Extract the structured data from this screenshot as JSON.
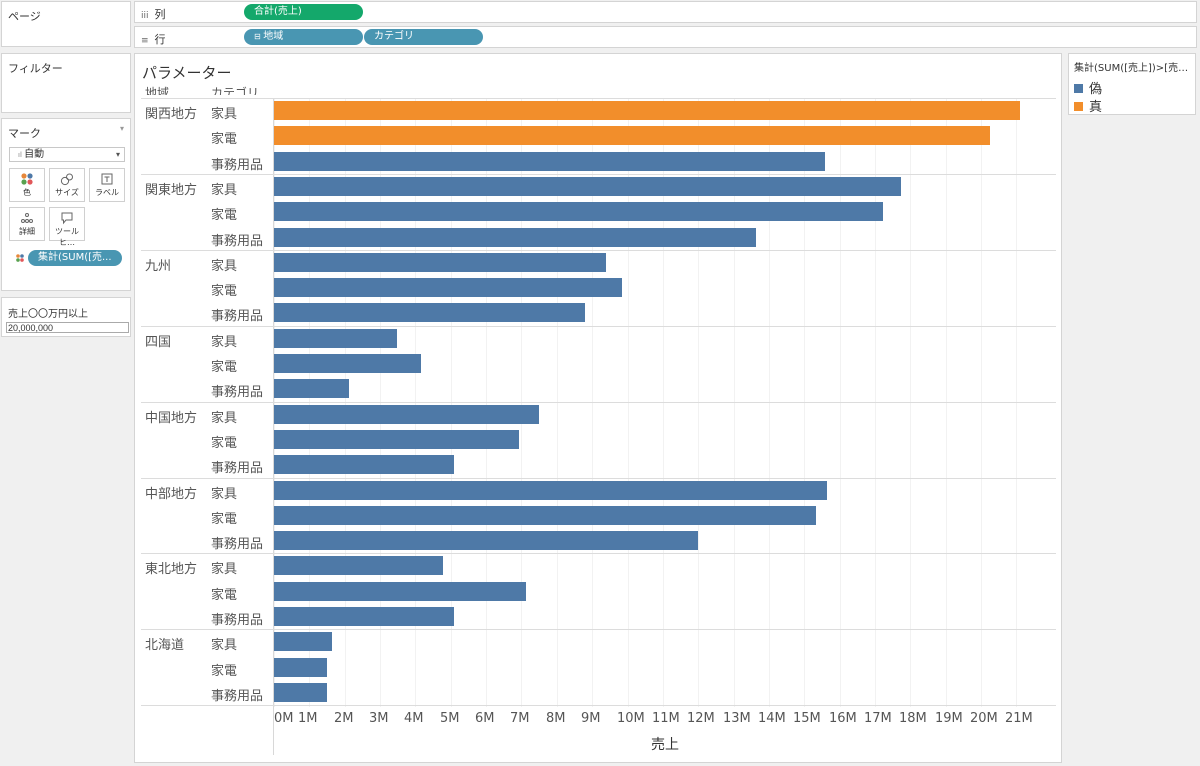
{
  "pages_label": "ページ",
  "filters_label": "フィルター",
  "marks": {
    "title": "マーク",
    "type": "自動",
    "buttons": [
      {
        "label": "色",
        "icon": "color-dots-icon"
      },
      {
        "label": "サイズ",
        "icon": "size-icon"
      },
      {
        "label": "ラベル",
        "icon": "label-icon"
      },
      {
        "label": "詳細",
        "icon": "detail-icon"
      },
      {
        "label": "ツールヒ…",
        "icon": "tooltip-icon"
      }
    ],
    "pill": "集計(SUM([売..."
  },
  "parameter": {
    "title": "売上〇〇万円以上",
    "value": "20,000,000"
  },
  "shelves": {
    "columns": {
      "label": "列",
      "pills": [
        "合計(売上)"
      ]
    },
    "rows": {
      "label": "行",
      "pills": [
        "地域",
        "カテゴリ"
      ]
    }
  },
  "legend": {
    "title": "集計(SUM([売上])>[売…",
    "items": [
      {
        "label": "偽",
        "color": "#4e79a7"
      },
      {
        "label": "真",
        "color": "#f28e2b"
      }
    ]
  },
  "chart_data": {
    "type": "bar",
    "orientation": "horizontal",
    "title": "パラメーター",
    "row_headers": [
      "地域",
      "カテゴリ"
    ],
    "xlabel": "売上",
    "xlim": [
      0,
      22000000
    ],
    "x_ticks": [
      "0M",
      "1M",
      "2M",
      "3M",
      "4M",
      "5M",
      "6M",
      "7M",
      "8M",
      "9M",
      "10M",
      "11M",
      "12M",
      "13M",
      "14M",
      "15M",
      "16M",
      "17M",
      "18M",
      "19M",
      "20M",
      "21M"
    ],
    "groups": [
      {
        "region": "関西地方",
        "items": [
          {
            "category": "家具",
            "value": 21100000,
            "flag": "真"
          },
          {
            "category": "家電",
            "value": 20250000,
            "flag": "真"
          },
          {
            "category": "事務用品",
            "value": 15600000,
            "flag": "偽"
          }
        ]
      },
      {
        "region": "関東地方",
        "items": [
          {
            "category": "家具",
            "value": 17750000,
            "flag": "偽"
          },
          {
            "category": "家電",
            "value": 17230000,
            "flag": "偽"
          },
          {
            "category": "事務用品",
            "value": 13640000,
            "flag": "偽"
          }
        ]
      },
      {
        "region": "九州",
        "items": [
          {
            "category": "家具",
            "value": 9380000,
            "flag": "偽"
          },
          {
            "category": "家電",
            "value": 9850000,
            "flag": "偽"
          },
          {
            "category": "事務用品",
            "value": 8800000,
            "flag": "偽"
          }
        ]
      },
      {
        "region": "四国",
        "items": [
          {
            "category": "家具",
            "value": 3470000,
            "flag": "偽"
          },
          {
            "category": "家電",
            "value": 4160000,
            "flag": "偽"
          },
          {
            "category": "事務用品",
            "value": 2120000,
            "flag": "偽"
          }
        ]
      },
      {
        "region": "中国地方",
        "items": [
          {
            "category": "家具",
            "value": 7490000,
            "flag": "偽"
          },
          {
            "category": "家電",
            "value": 6920000,
            "flag": "偽"
          },
          {
            "category": "事務用品",
            "value": 5100000,
            "flag": "偽"
          }
        ]
      },
      {
        "region": "中部地方",
        "items": [
          {
            "category": "家具",
            "value": 15630000,
            "flag": "偽"
          },
          {
            "category": "家電",
            "value": 15330000,
            "flag": "偽"
          },
          {
            "category": "事務用品",
            "value": 12000000,
            "flag": "偽"
          }
        ]
      },
      {
        "region": "東北地方",
        "items": [
          {
            "category": "家具",
            "value": 4780000,
            "flag": "偽"
          },
          {
            "category": "家電",
            "value": 7140000,
            "flag": "偽"
          },
          {
            "category": "事務用品",
            "value": 5080000,
            "flag": "偽"
          }
        ]
      },
      {
        "region": "北海道",
        "items": [
          {
            "category": "家具",
            "value": 1640000,
            "flag": "偽"
          },
          {
            "category": "家電",
            "value": 1490000,
            "flag": "偽"
          },
          {
            "category": "事務用品",
            "value": 1490000,
            "flag": "偽"
          }
        ]
      }
    ]
  }
}
